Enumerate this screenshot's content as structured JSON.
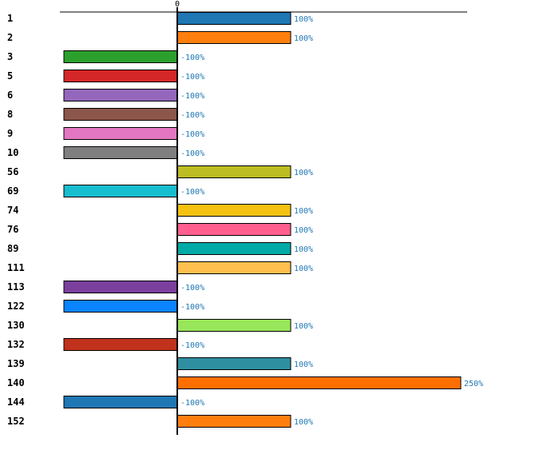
{
  "chart_data": {
    "type": "bar",
    "orientation": "horizontal",
    "title": "",
    "xlabel": "",
    "ylabel": "",
    "zero_tick_label": "0",
    "xlim": [
      -100,
      250
    ],
    "grid": false,
    "value_suffix": "%",
    "categories": [
      "1",
      "2",
      "3",
      "5",
      "6",
      "8",
      "9",
      "10",
      "56",
      "69",
      "74",
      "76",
      "89",
      "111",
      "113",
      "122",
      "130",
      "132",
      "139",
      "140",
      "144",
      "152"
    ],
    "values": [
      100,
      100,
      -100,
      -100,
      -100,
      -100,
      -100,
      -100,
      100,
      -100,
      100,
      100,
      100,
      100,
      -100,
      -100,
      100,
      -100,
      100,
      250,
      -100,
      100
    ],
    "colors": [
      "#1f77b4",
      "#ff7f0e",
      "#2ca02c",
      "#d62728",
      "#9467bd",
      "#8c564b",
      "#e377c2",
      "#7f7f7f",
      "#bcbd22",
      "#17becf",
      "#f5c211",
      "#ff5f8f",
      "#00aaa6",
      "#ffc04d",
      "#7b3f9e",
      "#0a84ff",
      "#98e65a",
      "#c0321c",
      "#2e8fa0",
      "#ff6f00",
      "#1f77b4",
      "#ff7f0e"
    ],
    "label_color": "#1f77b4"
  }
}
